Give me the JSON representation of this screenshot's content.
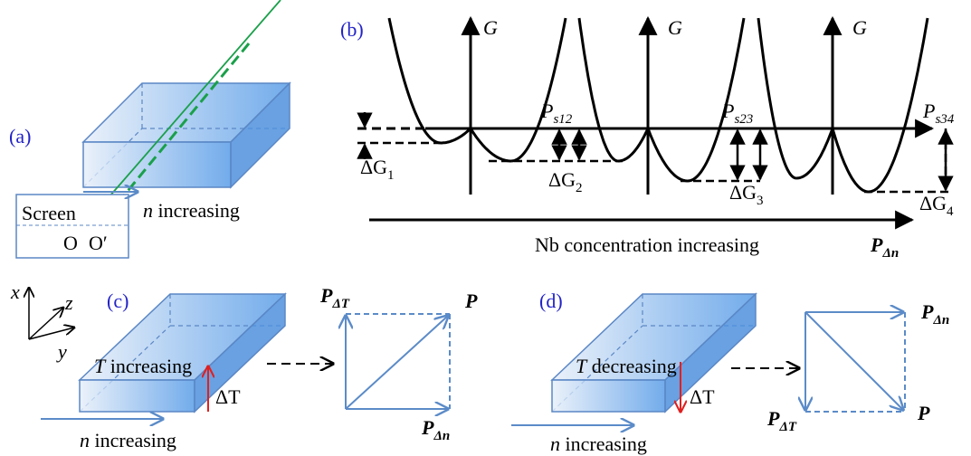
{
  "panels": {
    "a": {
      "label": "(a)",
      "screen": "Screen",
      "origin": "O",
      "origin_prime": "O′",
      "arrow": {
        "var": "n",
        "text": "increasing"
      }
    },
    "b": {
      "label": "(b)",
      "axes": [
        "G",
        "G",
        "G"
      ],
      "polarizations": [
        {
          "symbol": "P",
          "sub": "s12"
        },
        {
          "symbol": "P",
          "sub": "s23"
        },
        {
          "symbol": "P",
          "sub": "s34"
        }
      ],
      "energy_gaps": [
        {
          "symbol": "ΔG",
          "sub": "1"
        },
        {
          "symbol": "ΔG",
          "sub": "2"
        },
        {
          "symbol": "ΔG",
          "sub": "3"
        },
        {
          "symbol": "ΔG",
          "sub": "4"
        }
      ],
      "x_axis": "Nb concentration increasing",
      "x_symbol": {
        "symbol": "P",
        "sub": "Δn"
      }
    },
    "c": {
      "label": "(c)",
      "coords": [
        "x",
        "y",
        "z"
      ],
      "temp": {
        "var": "T",
        "text": "increasing"
      },
      "delta": "ΔT",
      "arrow": {
        "var": "n",
        "text": "increasing"
      },
      "vectors": [
        {
          "symbol": "P",
          "sub": "ΔT"
        },
        {
          "symbol": "P",
          "sub": ""
        },
        {
          "symbol": "P",
          "sub": "Δn"
        }
      ]
    },
    "d": {
      "label": "(d)",
      "temp": {
        "var": "T",
        "text": "decreasing"
      },
      "delta": "ΔT",
      "arrow": {
        "var": "n",
        "text": "increasing"
      },
      "vectors": [
        {
          "symbol": "P",
          "sub": "Δn"
        },
        {
          "symbol": "P",
          "sub": "ΔT"
        },
        {
          "symbol": "P",
          "sub": ""
        }
      ]
    }
  }
}
